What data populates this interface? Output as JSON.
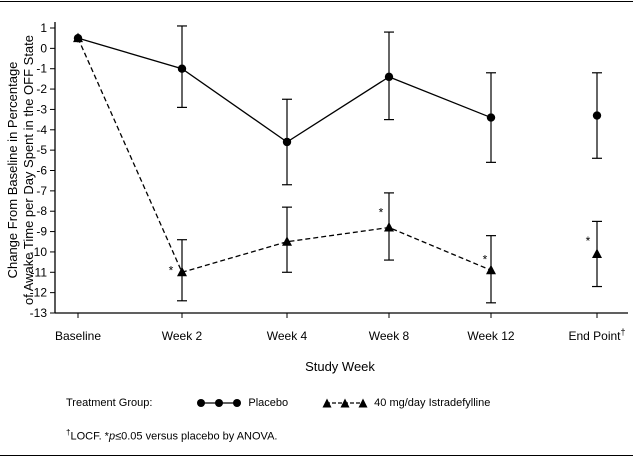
{
  "chart_data": {
    "type": "line",
    "ylabel_line1": "Change From Baseline in Percentage",
    "ylabel_line2": "of Awake Time per Day Spent in the OFF State",
    "xlabel": "Study Week",
    "categories": [
      "Baseline",
      "Week 2",
      "Week 4",
      "Week 8",
      "Week 12",
      "End Point"
    ],
    "end_point_superscript": "†",
    "ylim": [
      -13,
      1
    ],
    "yticks": [
      1,
      0,
      -1,
      -2,
      -3,
      -4,
      -5,
      -6,
      -7,
      -8,
      -9,
      -10,
      -11,
      -12,
      -13
    ],
    "series": [
      {
        "name": "Placebo",
        "marker": "circle",
        "line_style": "solid",
        "values": [
          0.5,
          -1.0,
          -4.6,
          -1.4,
          -3.4,
          -3.3
        ],
        "error_upper": [
          null,
          1.1,
          -2.5,
          0.8,
          -1.2,
          -1.2
        ],
        "error_lower": [
          null,
          -2.9,
          -6.7,
          -3.5,
          -5.6,
          -5.4
        ],
        "connected": [
          true,
          true,
          true,
          true,
          true,
          false
        ]
      },
      {
        "name": "40 mg/day Istradefylline",
        "marker": "triangle",
        "line_style": "dashed",
        "values": [
          0.5,
          -11.0,
          -9.5,
          -8.8,
          -10.9,
          -10.1
        ],
        "error_upper": [
          null,
          -9.4,
          -7.8,
          -7.1,
          -9.2,
          -8.5
        ],
        "error_lower": [
          null,
          -12.4,
          -11.0,
          -10.4,
          -12.5,
          -11.7
        ],
        "connected": [
          true,
          true,
          true,
          true,
          true,
          false
        ]
      }
    ],
    "significance_marks": [
      {
        "category": "Week 2",
        "label": "*"
      },
      {
        "category": "Week 8",
        "label": "*"
      },
      {
        "category": "Week 12",
        "label": "*"
      },
      {
        "category": "End Point",
        "label": "*"
      }
    ],
    "grid": false
  },
  "legend": {
    "title": "Treatment Group:",
    "placebo_label": "Placebo",
    "drug_label": "40 mg/day Istradefylline"
  },
  "footnote": {
    "dagger": "†",
    "text_a": "LOCF. *",
    "p": "p",
    "text_b": "≤0.05 versus placebo by ANOVA."
  }
}
